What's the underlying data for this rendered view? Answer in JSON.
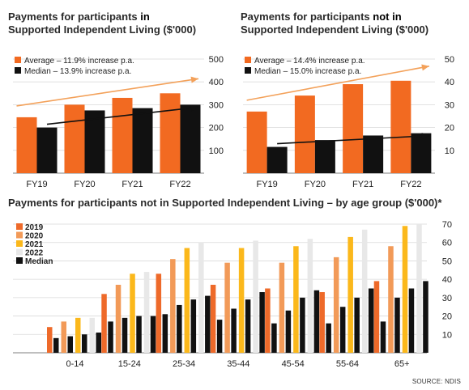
{
  "charts_text": {
    "chart1_title_a": "Payments for participants ",
    "chart1_title_b": "in",
    "chart1_title_c": "Supported Independent Living ($'000)",
    "chart2_title_a": "Payments for participants ",
    "chart2_title_b": "not in",
    "chart2_title_c": "Supported Independent Living ($'000)",
    "chart3_title": "Payments for participants not in Supported Independent Living – by age group ($'000)*",
    "source": "SOURCE: NDIS"
  },
  "colors": {
    "average": "#f26a21",
    "median": "#111111",
    "y2019": "#ee6a2a",
    "y2020": "#f29a58",
    "y2021": "#fbb81b",
    "y2022": "#e8e8e8",
    "trend_orange": "#f3a15a",
    "gridline": "#d9d9d9"
  },
  "chart_data": [
    {
      "type": "bar",
      "title": "Payments for participants in Supported Independent Living ($'000)",
      "categories": [
        "FY19",
        "FY20",
        "FY21",
        "FY22"
      ],
      "series": [
        {
          "name": "Average – 11.9% increase p.a.",
          "values": [
            245,
            300,
            330,
            350
          ]
        },
        {
          "name": "Median – 13.9% increase p.a.",
          "values": [
            200,
            275,
            285,
            300
          ]
        }
      ],
      "ylim": [
        0,
        500
      ],
      "yticks": [
        100,
        200,
        300,
        400,
        500
      ],
      "legend": "top-left"
    },
    {
      "type": "bar",
      "title": "Payments for participants not in Supported Independent Living ($'000)",
      "categories": [
        "FY19",
        "FY20",
        "FY21",
        "FY22"
      ],
      "series": [
        {
          "name": "Average – 14.4% increase p.a.",
          "values": [
            27,
            34,
            39,
            40.5
          ]
        },
        {
          "name": "Median – 15.0% increase p.a.",
          "values": [
            11.5,
            14.5,
            16.5,
            17.5
          ]
        }
      ],
      "ylim": [
        0,
        50
      ],
      "yticks": [
        10,
        20,
        30,
        40,
        50
      ],
      "legend": "top-left"
    },
    {
      "type": "bar",
      "title": "Payments for participants not in Supported Independent Living – by age group ($'000)*",
      "categories": [
        "0-14",
        "15-24",
        "25-34",
        "35-44",
        "45-54",
        "55-64",
        "65+"
      ],
      "series": [
        {
          "name": "2019",
          "values": [
            14,
            32,
            43,
            37,
            35,
            33,
            39
          ]
        },
        {
          "name": "2020",
          "values": [
            17,
            37,
            51,
            49,
            49,
            52,
            58
          ]
        },
        {
          "name": "2021",
          "values": [
            19,
            43,
            57,
            57,
            58,
            63,
            69
          ]
        },
        {
          "name": "2022",
          "values": [
            19,
            44,
            60,
            61,
            62,
            67,
            70
          ]
        },
        {
          "name": "Median",
          "values": [
            11,
            20,
            31,
            33,
            34,
            35,
            39
          ]
        }
      ],
      "extra_median_bars": [
        [
          8,
          17,
          21,
          18,
          16,
          16,
          17
        ],
        [
          9,
          19,
          26,
          24,
          23,
          25,
          30
        ],
        [
          10,
          20,
          29,
          29,
          30,
          30,
          35
        ]
      ],
      "ylim": [
        0,
        70
      ],
      "yticks": [
        10,
        20,
        30,
        40,
        50,
        60,
        70
      ],
      "legend": "top-left"
    }
  ]
}
